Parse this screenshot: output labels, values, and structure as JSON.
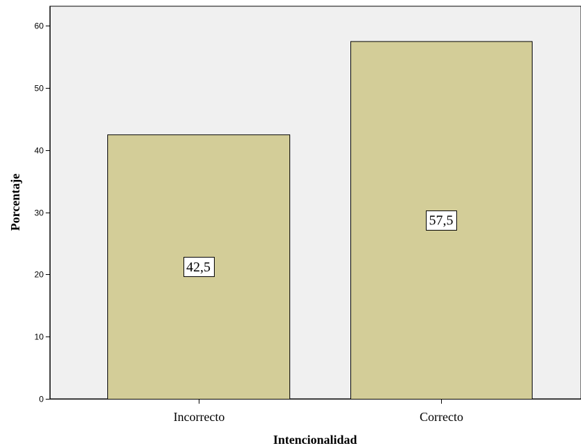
{
  "chart_data": {
    "type": "bar",
    "categories": [
      "Incorrecto",
      "Correcto"
    ],
    "values": [
      42.5,
      57.5
    ],
    "data_labels": [
      "42,5",
      "57,5"
    ],
    "title": "",
    "xlabel": "Intencionalidad",
    "ylabel": "Porcentaje",
    "ylim": [
      0,
      60
    ],
    "yticks": [
      0,
      10,
      20,
      30,
      40,
      50,
      60
    ],
    "grid": false,
    "legend": "none",
    "colors": {
      "plot_background": "#f0f0f0",
      "bar_fill": "#d3cd98",
      "bar_stroke": "#000000",
      "label_box": "#ffffff"
    }
  }
}
